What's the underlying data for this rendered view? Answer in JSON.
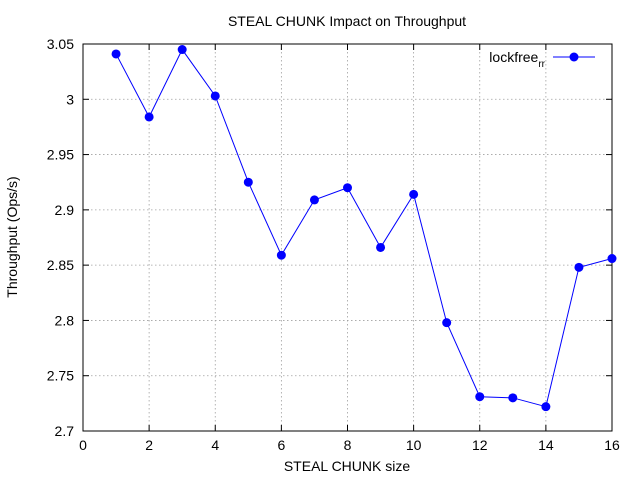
{
  "chart_data": {
    "type": "line",
    "title": "STEAL CHUNK Impact on Throughput",
    "xlabel": "STEAL CHUNK size",
    "ylabel": "Throughput (Ops/s)",
    "xlim": [
      0,
      16
    ],
    "ylim": [
      2.7,
      3.05
    ],
    "xticks": [
      0,
      2,
      4,
      6,
      8,
      10,
      12,
      14,
      16
    ],
    "xtick_labels": [
      "0",
      "2",
      "4",
      "6",
      "8",
      "10",
      "12",
      "14",
      "16"
    ],
    "yticks": [
      2.7,
      2.75,
      2.8,
      2.85,
      2.9,
      2.95,
      3.0,
      3.05
    ],
    "ytick_labels": [
      "2.7",
      "2.75",
      "2.8",
      "2.85",
      "2.9",
      "2.95",
      "3",
      "3.05"
    ],
    "grid": true,
    "legend_position": "top-right",
    "series": [
      {
        "name": "lockfree",
        "name_subscript": "rr",
        "color": "#0000ff",
        "marker": "circle",
        "x": [
          1,
          2,
          3,
          4,
          5,
          6,
          7,
          8,
          9,
          10,
          11,
          12,
          13,
          14,
          15,
          16
        ],
        "y": [
          3.041,
          2.984,
          3.045,
          3.003,
          2.925,
          2.859,
          2.909,
          2.92,
          2.866,
          2.914,
          2.798,
          2.731,
          2.73,
          2.722,
          2.848,
          2.856
        ]
      }
    ]
  }
}
